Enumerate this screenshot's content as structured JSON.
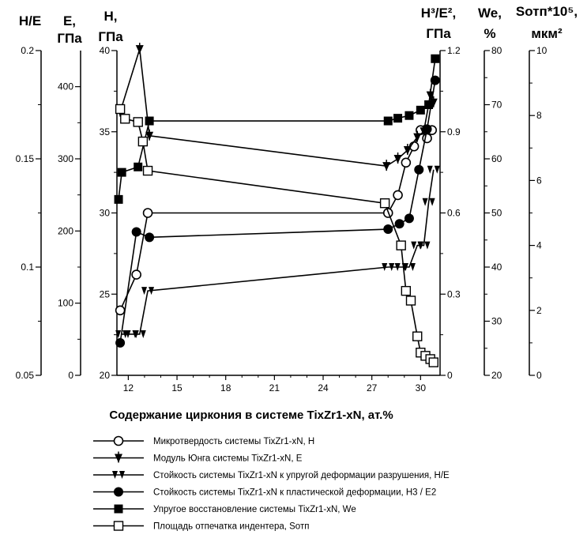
{
  "chart_data": {
    "type": "line",
    "xlabel": "Содержание циркония в системе TixZr1-xN, ат.%",
    "x_ticks": [
      12,
      15,
      18,
      21,
      24,
      27,
      30
    ],
    "xlim": [
      11.3,
      31.2
    ],
    "axes": [
      {
        "id": "he",
        "title_lines": [
          "H/E"
        ],
        "ticks": [
          "0.05",
          "0.1",
          "0.15",
          "0.2"
        ],
        "tick_values": [
          0.05,
          0.1,
          0.15,
          0.2
        ],
        "range": [
          0.05,
          0.2
        ]
      },
      {
        "id": "e",
        "title_lines": [
          "E,",
          "ГПа"
        ],
        "ticks": [
          "0",
          "100",
          "200",
          "300",
          "400"
        ],
        "tick_values": [
          0,
          100,
          200,
          300,
          400
        ],
        "range": [
          0,
          450
        ]
      },
      {
        "id": "h",
        "title_lines": [
          "H,",
          "ГПа"
        ],
        "ticks": [
          "20",
          "25",
          "30",
          "35",
          "40"
        ],
        "tick_values": [
          20,
          25,
          30,
          35,
          40
        ],
        "range": [
          20,
          40
        ]
      },
      {
        "id": "h3e2",
        "title_lines": [
          "H³/E²,",
          "ГПа"
        ],
        "ticks": [
          "0",
          "0.3",
          "0.6",
          "0.9",
          "1.2"
        ],
        "tick_values": [
          0,
          0.3,
          0.6,
          0.9,
          1.2
        ],
        "range": [
          0,
          1.2
        ]
      },
      {
        "id": "we",
        "title_lines": [
          "We,",
          "%"
        ],
        "ticks": [
          "20",
          "30",
          "40",
          "50",
          "60",
          "70",
          "80"
        ],
        "tick_values": [
          20,
          30,
          40,
          50,
          60,
          70,
          80
        ],
        "range": [
          20,
          80
        ]
      },
      {
        "id": "s",
        "title_lines": [
          "Sотп*10⁵,",
          "мкм²"
        ],
        "ticks": [
          "0",
          "2",
          "4",
          "6",
          "8",
          "10"
        ],
        "tick_values": [
          0,
          2,
          4,
          6,
          8,
          10
        ],
        "range": [
          0,
          10
        ]
      }
    ],
    "series": [
      {
        "name": "Микротвердость системы TixZr1-xN,  H",
        "axis": "h",
        "marker": "open-circle",
        "x": [
          11.5,
          12.5,
          13.2,
          28.0,
          28.6,
          29.1,
          29.6,
          30.0,
          30.4,
          30.7
        ],
        "y": [
          24.0,
          26.2,
          30.0,
          30.0,
          31.1,
          33.1,
          34.1,
          35.1,
          34.6,
          35.1
        ]
      },
      {
        "name": "Модуль Юнга системы TixZr1-xN,  E",
        "axis": "e",
        "marker": "filled-triangle",
        "x": [
          11.5,
          12.7,
          13.3,
          27.9,
          28.6,
          29.2,
          29.8,
          30.2,
          30.6,
          30.8
        ],
        "y": [
          365,
          452,
          332,
          290,
          300,
          312,
          330,
          338,
          388,
          378
        ]
      },
      {
        "name": "Стойкость системы TixZr1-xN к упругой деформации разрушения,  H/E",
        "axis": "he",
        "marker": "double-triangle",
        "x": [
          11.6,
          12.2,
          12.7,
          13.2,
          28.0,
          28.8,
          29.3,
          29.8,
          30.2,
          30.5,
          30.8
        ],
        "y": [
          0.069,
          0.069,
          0.069,
          0.089,
          0.1,
          0.1,
          0.1,
          0.11,
          0.11,
          0.13,
          0.145
        ]
      },
      {
        "name": "Стойкость системы TixZr1-xN к пластической деформации,  H3 / E2",
        "axis": "h3e2",
        "marker": "filled-circle",
        "x": [
          11.5,
          12.5,
          13.3,
          28.0,
          28.7,
          29.3,
          29.9,
          30.4,
          30.9
        ],
        "y": [
          0.12,
          0.53,
          0.51,
          0.54,
          0.56,
          0.58,
          0.76,
          0.91,
          1.09
        ]
      },
      {
        "name": "Упругое восстановление системы TixZr1-xN,  We",
        "axis": "we",
        "marker": "filled-square",
        "x": [
          11.4,
          11.6,
          12.6,
          13.3,
          28.0,
          28.6,
          29.3,
          30.0,
          30.5,
          30.9
        ],
        "y": [
          52.5,
          57.5,
          58.5,
          67.0,
          67.0,
          67.5,
          68.0,
          69.0,
          70.0,
          78.5
        ]
      },
      {
        "name": "Площадь отпечатка индентера, Sотп",
        "axis": "s",
        "marker": "open-square",
        "x": [
          11.5,
          11.8,
          12.6,
          12.9,
          13.2,
          27.8,
          28.8,
          29.1,
          29.4,
          29.8,
          30.0,
          30.3,
          30.6,
          30.8
        ],
        "y": [
          8.2,
          7.9,
          7.8,
          7.2,
          6.3,
          5.3,
          4.0,
          2.6,
          2.3,
          1.2,
          0.7,
          0.6,
          0.5,
          0.4
        ]
      }
    ]
  }
}
